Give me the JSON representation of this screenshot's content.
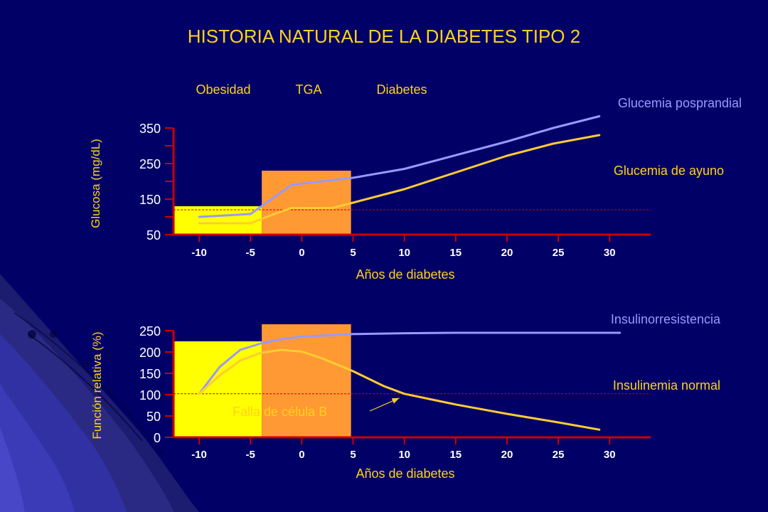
{
  "title": "HISTORIA NATURAL DE LA DIABETES TIPO 2",
  "colors": {
    "background": "#000066",
    "title": "#ffd21a",
    "axis": "#cc0000",
    "tick_label": "#ffffff",
    "axis_title": "#ffd21a",
    "stage_label": "#ffd21a",
    "series_yellow": "#ffcc33",
    "series_lavender": "#9999ff",
    "box_yellow": "#ffff00",
    "box_orange": "#ff9933",
    "reference_line": "#cc0000"
  },
  "chart_data": [
    {
      "type": "line",
      "xlabel": "Años de diabetes",
      "ylabel": "Glucosa (mg/dL)",
      "x_ticks": [
        "-10",
        "-5",
        "0",
        "5",
        "10",
        "15",
        "20",
        "25",
        "30"
      ],
      "y_ticks": [
        "50",
        "150",
        "250",
        "350"
      ],
      "xlim": [
        -12.5,
        34
      ],
      "ylim": [
        50,
        350
      ],
      "stage_labels": [
        "Obesidad",
        "TGA",
        "Diabetes"
      ],
      "regions": [
        {
          "x_from": -12.5,
          "x_to": -3.9,
          "y_top": 130,
          "color": "#ffff00"
        },
        {
          "x_from": -3.9,
          "x_to": 4.8,
          "y_top": 230,
          "color": "#ff9933"
        }
      ],
      "reference_line": {
        "y": 120
      },
      "series": [
        {
          "name": "Glucemia posprandial",
          "color": "#9999ff",
          "points": [
            [
              -10,
              100
            ],
            [
              -5,
              108
            ],
            [
              -1,
              190
            ],
            [
              5,
              210
            ],
            [
              10,
              235
            ],
            [
              20,
              312
            ],
            [
              24.5,
              350
            ],
            [
              29,
              383
            ]
          ]
        },
        {
          "name": "Glucemia  de ayuno",
          "color": "#ffcc33",
          "points": [
            [
              -10,
              82
            ],
            [
              -5,
              82
            ],
            [
              -2.5,
              110
            ],
            [
              -1,
              125
            ],
            [
              3,
              125
            ],
            [
              5,
              140
            ],
            [
              10,
              178
            ],
            [
              20,
              272
            ],
            [
              24.5,
              306
            ],
            [
              29,
              330
            ]
          ]
        }
      ]
    },
    {
      "type": "line",
      "xlabel": "Años de diabetes",
      "ylabel": "Función relativa (%)",
      "x_ticks": [
        "-10",
        "-5",
        "0",
        "5",
        "10",
        "15",
        "20",
        "25",
        "30"
      ],
      "y_ticks": [
        "0",
        "50",
        "100",
        "150",
        "200",
        "250"
      ],
      "xlim": [
        -12.5,
        34
      ],
      "ylim": [
        0,
        250
      ],
      "regions": [
        {
          "x_from": -12.5,
          "x_to": -3.9,
          "y_top": 225,
          "color": "#ffff00"
        },
        {
          "x_from": -3.9,
          "x_to": 4.8,
          "y_top": 265,
          "color": "#ff9933"
        }
      ],
      "reference_line": {
        "y": 102
      },
      "annotation": {
        "text": "Falla de célula B",
        "points_to": [
          9.5,
          92
        ]
      },
      "series": [
        {
          "name": "Insulinorresistencia",
          "color": "#9999ff",
          "points": [
            [
              -10,
              102
            ],
            [
              -8,
              165
            ],
            [
              -6,
              205
            ],
            [
              -4,
              220
            ],
            [
              -2,
              230
            ],
            [
              0,
              236
            ],
            [
              5,
              242
            ],
            [
              10,
              244
            ],
            [
              15,
              245
            ],
            [
              20,
              245
            ],
            [
              25,
              245
            ],
            [
              31,
              245
            ]
          ]
        },
        {
          "name": "Insulinemia normal",
          "color": "#ffcc33",
          "points": [
            [
              -10,
              102
            ],
            [
              -8,
              145
            ],
            [
              -6,
              180
            ],
            [
              -4,
              198
            ],
            [
              -2,
              205
            ],
            [
              0,
              201
            ],
            [
              2,
              185
            ],
            [
              5,
              155
            ],
            [
              8,
              120
            ],
            [
              10,
              102
            ],
            [
              15,
              77
            ],
            [
              20,
              55
            ],
            [
              25,
              35
            ],
            [
              29,
              18
            ]
          ]
        }
      ]
    }
  ]
}
